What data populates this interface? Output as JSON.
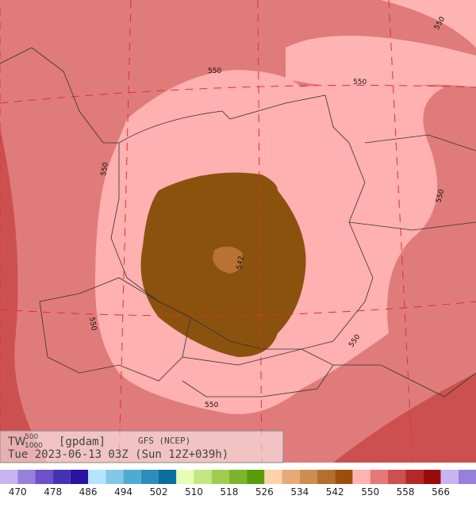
{
  "header": {
    "variable": "TW",
    "level_top": "500",
    "level_bottom": "1000",
    "unit": "[gpdam]",
    "model": "GFS (NCEP)",
    "time": "Tue 2023-06-13 03Z (Sun 12Z+039h)"
  },
  "contour_labels": [
    "550",
    "550",
    "550",
    "550",
    "550",
    "550",
    "550",
    "550",
    "542"
  ],
  "colorbar": {
    "colors": [
      "#c8b4f0",
      "#9680dc",
      "#6e50c8",
      "#4632b4",
      "#2814a0",
      "#b4e6ff",
      "#82c8e6",
      "#50aad2",
      "#2d8cbe",
      "#0a6ea0",
      "#e6ffb4",
      "#c3e682",
      "#a0cd50",
      "#7db42d",
      "#5a9b0a",
      "#ffd2aa",
      "#e6aa78",
      "#cd8c50",
      "#b46e2d",
      "#9b500a",
      "#ffb4b4",
      "#e67878",
      "#cd5050",
      "#b42828",
      "#9b0a0a",
      "#c8b4f0",
      "#9680dc"
    ],
    "levels": [
      470,
      478,
      486,
      494,
      502,
      510,
      518,
      526,
      534,
      542,
      550,
      558,
      566
    ]
  }
}
